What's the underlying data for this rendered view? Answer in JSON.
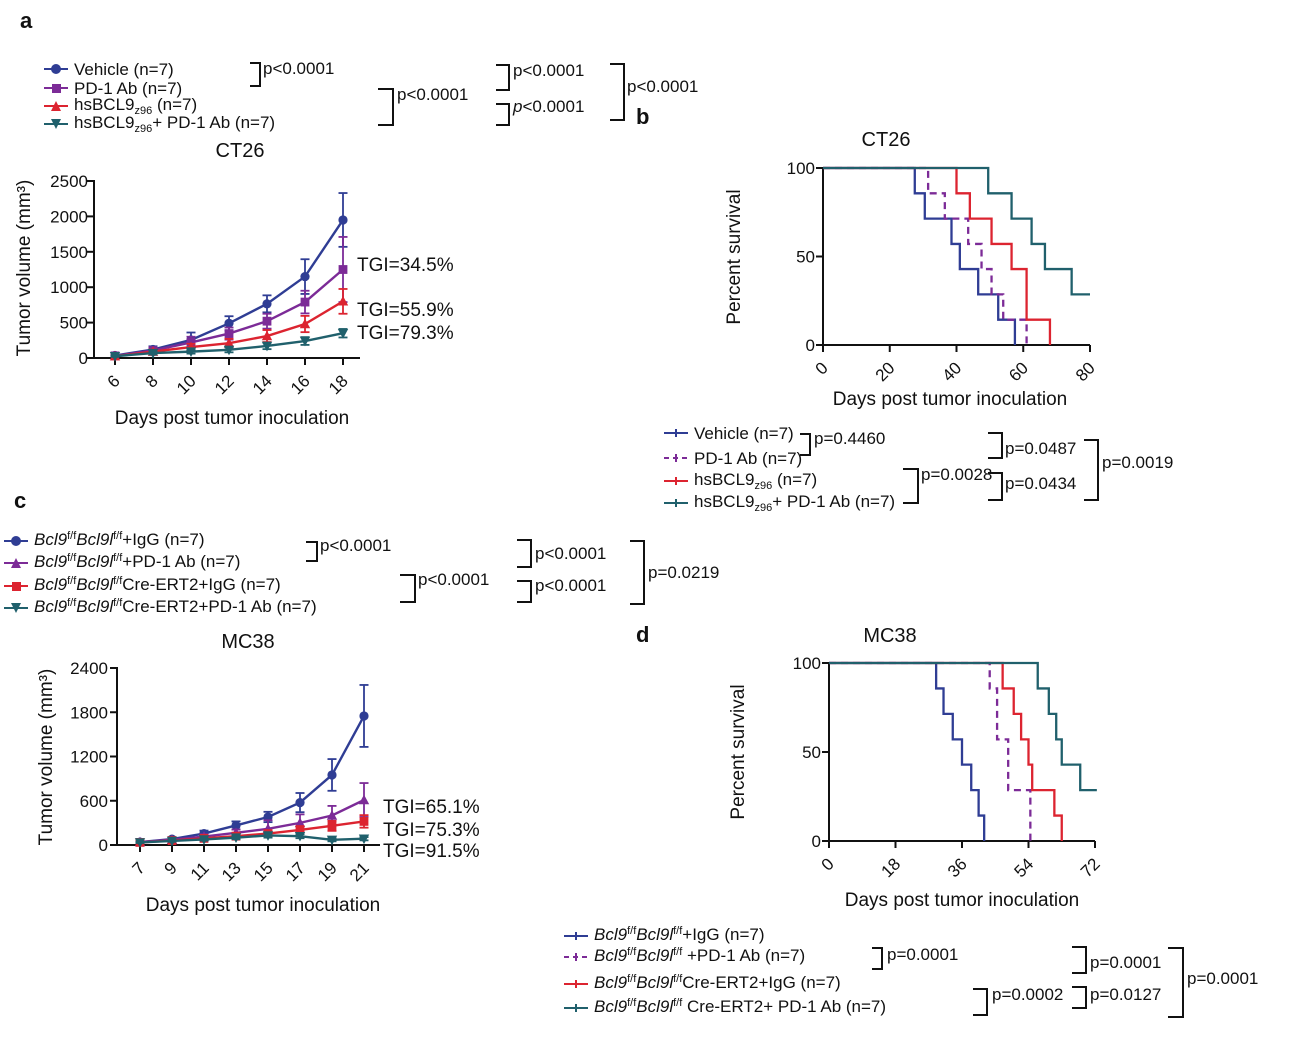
{
  "colors": {
    "blue": "#2F3D94",
    "purple": "#7C2B97",
    "red": "#DC2430",
    "teal": "#20606C",
    "ink": "#111111"
  },
  "panels": {
    "a": {
      "label": "a",
      "legend": [
        {
          "color": "blue",
          "marker": "circle",
          "parts": [
            {
              "t": "Vehicle (n=7)"
            }
          ]
        },
        {
          "color": "purple",
          "marker": "square",
          "parts": [
            {
              "t": "PD-1 Ab (n=7)"
            }
          ]
        },
        {
          "color": "red",
          "marker": "tri-up",
          "parts": [
            {
              "t": "hsBCL9"
            },
            {
              "t": "z96",
              "s": "sub"
            },
            {
              "t": " (n=7)"
            }
          ]
        },
        {
          "color": "teal",
          "marker": "tri-down",
          "parts": [
            {
              "t": "hsBCL9"
            },
            {
              "t": "z96",
              "s": "sub"
            },
            {
              "t": "+ PD-1 Ab (n=7)"
            }
          ]
        }
      ],
      "pvalues": [
        {
          "text": "p<0.0001"
        },
        {
          "text": "p<0.0001"
        },
        {
          "text": "p<0.0001"
        },
        {
          "text": "p<0.0001",
          "italic_p": true
        },
        {
          "text": "p<0.0001"
        }
      ]
    },
    "b": {
      "label": "b",
      "legend": [
        {
          "color": "blue",
          "marker": "line",
          "parts": [
            {
              "t": "Vehicle (n=7)"
            }
          ]
        },
        {
          "color": "purple",
          "marker": "line-dashed",
          "parts": [
            {
              "t": "PD-1 Ab (n=7)"
            }
          ]
        },
        {
          "color": "red",
          "marker": "line",
          "parts": [
            {
              "t": "hsBCL9"
            },
            {
              "t": "z96",
              "s": "sub"
            },
            {
              "t": " (n=7)"
            }
          ]
        },
        {
          "color": "teal",
          "marker": "line",
          "parts": [
            {
              "t": "hsBCL9"
            },
            {
              "t": "z96",
              "s": "sub"
            },
            {
              "t": "+ PD-1 Ab (n=7)"
            }
          ]
        }
      ],
      "pvalues": [
        {
          "text": "p=0.4460"
        },
        {
          "text": "p=0.0028"
        },
        {
          "text": "p=0.0487"
        },
        {
          "text": "p=0.0434"
        },
        {
          "text": "p=0.0019"
        }
      ]
    },
    "c": {
      "label": "c",
      "legend": [
        {
          "color": "blue",
          "marker": "circle",
          "parts": [
            {
              "t": "Bcl9",
              "s": "i"
            },
            {
              "t": "f/f",
              "s": "sup"
            },
            {
              "t": "Bcl9l",
              "s": "i"
            },
            {
              "t": "f/f",
              "s": "sup"
            },
            {
              "t": "+IgG (n=7)"
            }
          ]
        },
        {
          "color": "purple",
          "marker": "tri-up",
          "parts": [
            {
              "t": "Bcl9",
              "s": "i"
            },
            {
              "t": "f/f",
              "s": "sup"
            },
            {
              "t": "Bcl9l",
              "s": "i"
            },
            {
              "t": "f/f",
              "s": "sup"
            },
            {
              "t": "+PD-1 Ab (n=7)"
            }
          ]
        },
        {
          "color": "red",
          "marker": "square",
          "parts": [
            {
              "t": "Bcl9",
              "s": "i"
            },
            {
              "t": "f/f",
              "s": "sup"
            },
            {
              "t": "Bcl9l",
              "s": "i"
            },
            {
              "t": "f/f",
              "s": "sup"
            },
            {
              "t": "Cre-ERT2+IgG (n=7)"
            }
          ]
        },
        {
          "color": "teal",
          "marker": "tri-down",
          "parts": [
            {
              "t": "Bcl9",
              "s": "i"
            },
            {
              "t": "f/f",
              "s": "sup"
            },
            {
              "t": "Bcl9l",
              "s": "i"
            },
            {
              "t": "f/f",
              "s": "sup"
            },
            {
              "t": "Cre-ERT2+PD-1 Ab (n=7)"
            }
          ]
        }
      ],
      "pvalues": [
        {
          "text": "p<0.0001"
        },
        {
          "text": "p<0.0001"
        },
        {
          "text": "p<0.0001"
        },
        {
          "text": "p<0.0001"
        },
        {
          "text": "p=0.0219"
        }
      ]
    },
    "d": {
      "label": "d",
      "legend": [
        {
          "color": "blue",
          "marker": "line",
          "parts": [
            {
              "t": "Bcl9",
              "s": "i"
            },
            {
              "t": "f/f",
              "s": "sup"
            },
            {
              "t": "Bcl9l",
              "s": "i"
            },
            {
              "t": "f/f",
              "s": "sup"
            },
            {
              "t": "+IgG (n=7)"
            }
          ]
        },
        {
          "color": "purple",
          "marker": "line-dashed",
          "parts": [
            {
              "t": "Bcl9",
              "s": "i"
            },
            {
              "t": "f/f",
              "s": "sup"
            },
            {
              "t": "Bcl9l",
              "s": "i"
            },
            {
              "t": "f/f",
              "s": "sup"
            },
            {
              "t": " +PD-1 Ab (n=7)"
            }
          ]
        },
        {
          "color": "red",
          "marker": "line",
          "parts": [
            {
              "t": "Bcl9",
              "s": "i"
            },
            {
              "t": "f/f",
              "s": "sup"
            },
            {
              "t": "Bcl9l",
              "s": "i"
            },
            {
              "t": "f/f",
              "s": "sup"
            },
            {
              "t": "Cre-ERT2+IgG (n=7)"
            }
          ]
        },
        {
          "color": "teal",
          "marker": "line",
          "parts": [
            {
              "t": "Bcl9",
              "s": "i"
            },
            {
              "t": "f/f",
              "s": "sup"
            },
            {
              "t": "Bcl9l",
              "s": "i"
            },
            {
              "t": "f/f",
              "s": "sup"
            },
            {
              "t": " Cre-ERT2+ PD-1 Ab (n=7)"
            }
          ]
        }
      ],
      "pvalues": [
        {
          "text": "p=0.0001"
        },
        {
          "text": "p=0.0002"
        },
        {
          "text": "p=0.0001"
        },
        {
          "text": "p=0.0127"
        },
        {
          "text": "p=0.0001"
        }
      ]
    }
  },
  "chart_data": [
    {
      "id": "a",
      "type": "line",
      "title": "CT26",
      "xlabel": "Days post tumor inoculation",
      "ylabel": "Tumor volume (mm³)",
      "x": [
        6,
        8,
        10,
        12,
        14,
        16,
        18
      ],
      "yticks": [
        0,
        500,
        1000,
        1500,
        2000,
        2500
      ],
      "ylim": [
        0,
        2500
      ],
      "series": [
        {
          "name": "Vehicle (n=7)",
          "color": "blue",
          "marker": "circle",
          "values": [
            35,
            120,
            255,
            490,
            765,
            1150,
            1950
          ],
          "err": [
            20,
            45,
            105,
            100,
            120,
            245,
            380
          ]
        },
        {
          "name": "PD-1 Ab (n=7)",
          "color": "purple",
          "marker": "square",
          "values": [
            30,
            105,
            220,
            345,
            520,
            790,
            1250
          ],
          "err": [
            15,
            40,
            80,
            85,
            105,
            160,
            460
          ]
        },
        {
          "name": "hsBCL9z96 (n=7)",
          "color": "red",
          "marker": "tri-up",
          "values": [
            25,
            90,
            155,
            210,
            310,
            480,
            800
          ],
          "err": [
            12,
            30,
            45,
            60,
            85,
            115,
            175
          ]
        },
        {
          "name": "hsBCL9z96+ PD-1 Ab (n=7)",
          "color": "teal",
          "marker": "tri-down",
          "values": [
            25,
            70,
            90,
            115,
            170,
            240,
            350
          ],
          "err": [
            10,
            22,
            28,
            35,
            45,
            55,
            60
          ]
        }
      ],
      "annotations": [
        "TGI=34.5%",
        "TGI=55.9%",
        "TGI=79.3%"
      ]
    },
    {
      "id": "b",
      "type": "km",
      "title": "CT26",
      "xlabel": "Days post tumor inoculation",
      "ylabel": "Percent survival",
      "xticks": [
        0,
        20,
        40,
        60,
        80
      ],
      "yticks": [
        0,
        50,
        100
      ],
      "xlim": [
        0,
        80
      ],
      "ylim": [
        0,
        100
      ],
      "series": [
        {
          "name": "Vehicle (n=7)",
          "color": "blue",
          "dash": false,
          "steps": [
            [
              27.5,
              85.7
            ],
            [
              30.5,
              71.4
            ],
            [
              38.5,
              57.1
            ],
            [
              41,
              42.9
            ],
            [
              46.5,
              28.6
            ],
            [
              52.5,
              14.3
            ],
            [
              57.5,
              0
            ]
          ]
        },
        {
          "name": "PD-1 Ab (n=7)",
          "color": "purple",
          "dash": true,
          "steps": [
            [
              31.5,
              85.7
            ],
            [
              36.5,
              71.4
            ],
            [
              43.5,
              57.1
            ],
            [
              47.5,
              42.9
            ],
            [
              50.5,
              28.6
            ],
            [
              54,
              14.3
            ],
            [
              61,
              0
            ]
          ]
        },
        {
          "name": "hsBCL9z96 (n=7)",
          "color": "red",
          "dash": false,
          "steps": [
            [
              40,
              85.7
            ],
            [
              44,
              71.4
            ],
            [
              50.5,
              57.1
            ],
            [
              56.5,
              42.9
            ],
            [
              61,
              14.3
            ],
            [
              68,
              0
            ]
          ]
        },
        {
          "name": "hsBCL9z96+ PD-1 Ab (n=7)",
          "color": "teal",
          "dash": false,
          "steps": [
            [
              49.5,
              85.7
            ],
            [
              56.5,
              71.4
            ],
            [
              62.5,
              57.1
            ],
            [
              66.5,
              42.9
            ],
            [
              74.5,
              28.6
            ]
          ],
          "tail": 80
        }
      ]
    },
    {
      "id": "c",
      "type": "line",
      "title": "MC38",
      "xlabel": "Days post tumor inoculation",
      "ylabel": "Tumor volume (mm³)",
      "x": [
        7,
        9,
        11,
        13,
        15,
        17,
        19,
        21
      ],
      "yticks": [
        0,
        600,
        1200,
        1800,
        2400
      ],
      "ylim": [
        0,
        2400
      ],
      "series": [
        {
          "name": "Bcl9f/fBcl9lf/f+IgG (n=7)",
          "color": "blue",
          "marker": "circle",
          "values": [
            40,
            80,
            155,
            265,
            380,
            575,
            950,
            1750
          ],
          "err": [
            15,
            25,
            40,
            55,
            70,
            130,
            215,
            420
          ]
        },
        {
          "name": "Bcl9f/fBcl9lf/f+PD-1 Ab (n=7)",
          "color": "purple",
          "marker": "tri-up",
          "values": [
            40,
            70,
            115,
            165,
            220,
            300,
            400,
            610
          ],
          "err": [
            12,
            20,
            30,
            45,
            115,
            115,
            130,
            230
          ]
        },
        {
          "name": "Bcl9f/fBcl9lf/fCre-ERT2+IgG (n=7)",
          "color": "red",
          "marker": "square",
          "values": [
            35,
            60,
            90,
            120,
            155,
            205,
            260,
            320
          ],
          "err": [
            10,
            16,
            24,
            32,
            42,
            52,
            68,
            85
          ]
        },
        {
          "name": "Bcl9f/fBcl9lf/fCre-ERT2+PD-1 Ab (n=7)",
          "color": "teal",
          "marker": "tri-down",
          "values": [
            35,
            55,
            75,
            100,
            130,
            120,
            70,
            85
          ],
          "err": [
            8,
            12,
            16,
            22,
            30,
            28,
            20,
            22
          ]
        }
      ],
      "annotations": [
        "TGI=65.1%",
        "TGI=75.3%",
        "TGI=91.5%"
      ]
    },
    {
      "id": "d",
      "type": "km",
      "title": "MC38",
      "xlabel": "Days post tumor inoculation",
      "ylabel": "Percent survival",
      "xticks": [
        0,
        18,
        36,
        54,
        72
      ],
      "yticks": [
        0,
        50,
        100
      ],
      "xlim": [
        0,
        72
      ],
      "ylim": [
        0,
        100
      ],
      "series": [
        {
          "name": "Bcl9f/fBcl9lf/f+IgG (n=7)",
          "color": "blue",
          "dash": false,
          "steps": [
            [
              29,
              85.7
            ],
            [
              31,
              71.4
            ],
            [
              33.5,
              57.1
            ],
            [
              36,
              42.9
            ],
            [
              38.5,
              28.6
            ],
            [
              40.5,
              14.3
            ],
            [
              42,
              0
            ]
          ]
        },
        {
          "name": "Bcl9f/fBcl9lf/f +PD-1 Ab (n=7)",
          "color": "purple",
          "dash": true,
          "steps": [
            [
              43.5,
              85.7
            ],
            [
              45.5,
              57.1
            ],
            [
              48.5,
              28.6
            ],
            [
              54.5,
              0
            ]
          ]
        },
        {
          "name": "Bcl9f/fBcl9lf/fCre-ERT2+IgG (n=7)",
          "color": "red",
          "dash": false,
          "steps": [
            [
              47,
              85.7
            ],
            [
              50,
              71.4
            ],
            [
              52,
              57.1
            ],
            [
              54,
              42.9
            ],
            [
              55,
              28.6
            ],
            [
              61,
              14.3
            ],
            [
              63,
              0
            ]
          ]
        },
        {
          "name": "Bcl9f/fBcl9lf/f Cre-ERT2+ PD-1 Ab (n=7)",
          "color": "teal",
          "dash": false,
          "steps": [
            [
              56.5,
              85.7
            ],
            [
              59.5,
              71.4
            ],
            [
              61.5,
              57.1
            ],
            [
              63,
              42.9
            ],
            [
              68,
              28.6
            ]
          ],
          "tail": 72.5
        }
      ]
    }
  ]
}
